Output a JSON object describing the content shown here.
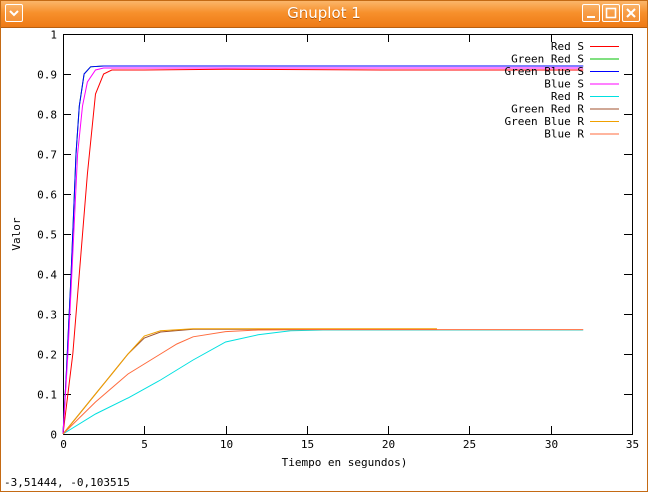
{
  "window": {
    "title": "Gnuplot 1",
    "titlebar_color": "#f28a22"
  },
  "status": {
    "coords": "-3,51444, -0,103515"
  },
  "chart_data": {
    "type": "line",
    "xlabel": "Tiempo en segundos)",
    "ylabel": "Valor",
    "xlim": [
      0,
      35
    ],
    "ylim": [
      0,
      1
    ],
    "xticks": [
      0,
      5,
      10,
      15,
      20,
      25,
      30,
      35
    ],
    "yticks": [
      0,
      0.1,
      0.2,
      0.3,
      0.4,
      0.5,
      0.6,
      0.7,
      0.8,
      0.9,
      1
    ],
    "grid": false,
    "legend_position": "top-right",
    "series": [
      {
        "name": "Red S",
        "color": "#ff0000",
        "x": [
          0,
          0.3,
          0.6,
          1.0,
          1.5,
          2.0,
          2.5,
          3.0,
          5,
          10,
          20,
          32
        ],
        "y": [
          0,
          0.1,
          0.2,
          0.4,
          0.65,
          0.85,
          0.9,
          0.91,
          0.91,
          0.912,
          0.91,
          0.91
        ]
      },
      {
        "name": "Green Red S",
        "color": "#00c000",
        "x": [
          0,
          0.2,
          0.5,
          0.8,
          1.0,
          1.3,
          1.7,
          2.5,
          5,
          15,
          32
        ],
        "y": [
          0,
          0.15,
          0.4,
          0.7,
          0.82,
          0.9,
          0.918,
          0.92,
          0.92,
          0.92,
          0.92
        ]
      },
      {
        "name": "Green Blue S",
        "color": "#0000ff",
        "x": [
          0,
          0.2,
          0.5,
          0.8,
          1.0,
          1.3,
          1.7,
          2.5,
          5,
          15,
          32
        ],
        "y": [
          0,
          0.15,
          0.4,
          0.7,
          0.82,
          0.9,
          0.918,
          0.92,
          0.92,
          0.92,
          0.92
        ]
      },
      {
        "name": "Blue S",
        "color": "#ff00ff",
        "x": [
          0,
          0.3,
          0.6,
          0.9,
          1.2,
          1.5,
          2.0,
          2.5,
          5,
          15,
          32
        ],
        "y": [
          0,
          0.2,
          0.45,
          0.7,
          0.82,
          0.88,
          0.91,
          0.915,
          0.915,
          0.915,
          0.915
        ]
      },
      {
        "name": "Red R",
        "color": "#00e0e0",
        "x": [
          0,
          2,
          4,
          6,
          8,
          10,
          12,
          14,
          16,
          20,
          32
        ],
        "y": [
          0,
          0.05,
          0.09,
          0.135,
          0.185,
          0.23,
          0.248,
          0.258,
          0.26,
          0.26,
          0.26
        ]
      },
      {
        "name": "Green Red R",
        "color": "#a0522d",
        "x": [
          0,
          1,
          2,
          3,
          4,
          5,
          6,
          8,
          10,
          15,
          23
        ],
        "y": [
          0,
          0.05,
          0.1,
          0.15,
          0.2,
          0.24,
          0.255,
          0.262,
          0.262,
          0.262,
          0.262
        ]
      },
      {
        "name": "Green Blue R",
        "color": "#f0a000",
        "x": [
          0,
          1,
          2,
          3,
          4,
          5,
          6,
          8,
          10,
          15,
          23
        ],
        "y": [
          0,
          0.05,
          0.1,
          0.15,
          0.2,
          0.245,
          0.258,
          0.263,
          0.263,
          0.263,
          0.263
        ]
      },
      {
        "name": "Blue R",
        "color": "#ff6b3d",
        "x": [
          0,
          2,
          4,
          6,
          7,
          8,
          10,
          12,
          15,
          20,
          32
        ],
        "y": [
          0,
          0.08,
          0.15,
          0.2,
          0.225,
          0.243,
          0.256,
          0.26,
          0.261,
          0.261,
          0.261
        ]
      }
    ]
  }
}
